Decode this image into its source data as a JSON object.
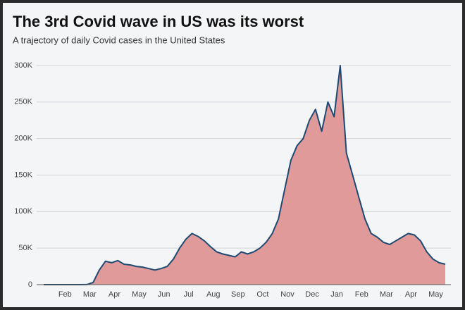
{
  "chart_data": {
    "type": "area",
    "title": "The 3rd Covid wave in US was its worst",
    "subtitle": "A trajectory of daily Covid cases in the United States",
    "categories": [
      null,
      null,
      null,
      "Feb",
      null,
      null,
      null,
      "Mar",
      null,
      null,
      null,
      "Apr",
      null,
      null,
      null,
      "May",
      null,
      null,
      null,
      "Jun",
      null,
      null,
      null,
      "Jul",
      null,
      null,
      null,
      "Aug",
      null,
      null,
      null,
      "Sep",
      null,
      null,
      null,
      "Oct",
      null,
      null,
      null,
      "Nov",
      null,
      null,
      null,
      "Dec",
      null,
      null,
      null,
      "Jan",
      null,
      null,
      null,
      "Feb",
      null,
      null,
      null,
      "Mar",
      null,
      null,
      null,
      "Apr",
      null,
      null,
      null,
      "May",
      null,
      null
    ],
    "values": [
      0,
      0,
      0,
      0,
      0,
      0,
      0,
      100,
      3000,
      20000,
      32000,
      30000,
      33000,
      28000,
      27000,
      25000,
      24000,
      22000,
      20000,
      22000,
      25000,
      35000,
      50000,
      62000,
      70000,
      66000,
      60000,
      52000,
      45000,
      42000,
      40000,
      38000,
      45000,
      42000,
      45000,
      50000,
      58000,
      70000,
      90000,
      130000,
      170000,
      190000,
      200000,
      225000,
      240000,
      210000,
      250000,
      230000,
      300000,
      180000,
      150000,
      120000,
      90000,
      70000,
      65000,
      58000,
      55000,
      60000,
      65000,
      70000,
      68000,
      60000,
      45000,
      35000,
      30000,
      28000
    ],
    "color": "#e09a9a",
    "line_color": "#1d4a73",
    "ylim": [
      0,
      300000
    ],
    "yticks": [
      0,
      {
        "value": 50000,
        "label": "50K"
      },
      {
        "value": 100000,
        "label": "100K"
      },
      {
        "value": 150000,
        "label": "150K"
      },
      {
        "value": 200000,
        "label": "200K"
      },
      {
        "value": 250000,
        "label": "250K"
      },
      {
        "value": 300000,
        "label": "300K"
      }
    ],
    "grid": true
  }
}
